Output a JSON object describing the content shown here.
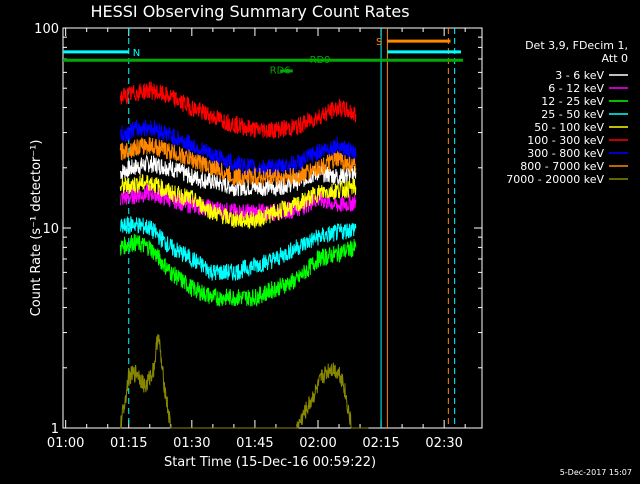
{
  "chart_data": {
    "type": "line",
    "title": "HESSI Observing Summary Count Rates",
    "xlabel": "Start Time (15-Dec-16 00:59:22)",
    "ylabel": "Count Rate (s⁻¹ detector⁻¹)",
    "yscale": "log",
    "ylim": [
      1,
      100
    ],
    "xlim": [
      "00:59:22",
      "02:39:00"
    ],
    "x_ticks": [
      "01:00",
      "01:15",
      "01:30",
      "01:45",
      "02:00",
      "02:15",
      "02:30"
    ],
    "y_ticks": [
      "1",
      "10",
      "100"
    ],
    "grid": false,
    "legend_position": "top-right",
    "legend_title_lines": [
      "Det 3,9, FDecim 1,",
      "Att 0"
    ],
    "background": "#000000",
    "axis_color": "#ffffff",
    "series": [
      {
        "name": "3 - 6 keV",
        "color": "#ffffff",
        "x": [
          "01:13",
          "01:16",
          "01:20",
          "01:25",
          "01:30",
          "01:35",
          "01:40",
          "01:45",
          "01:50",
          "01:55",
          "02:00",
          "02:05",
          "02:09"
        ],
        "values": [
          19,
          20,
          21,
          20,
          18,
          17,
          16,
          16,
          16,
          17,
          19,
          18,
          19
        ]
      },
      {
        "name": "6 - 12 keV",
        "color": "#ff00ff",
        "x": [
          "01:13",
          "01:16",
          "01:20",
          "01:25",
          "01:30",
          "01:35",
          "01:40",
          "01:45",
          "01:50",
          "01:55",
          "02:00",
          "02:05",
          "02:09"
        ],
        "values": [
          14,
          14.5,
          15,
          14,
          13,
          12.5,
          12,
          12,
          12,
          12.5,
          14,
          13,
          13.5
        ]
      },
      {
        "name": "12 - 25 keV",
        "color": "#00ff00",
        "x": [
          "01:13",
          "01:16",
          "01:20",
          "01:25",
          "01:30",
          "01:35",
          "01:40",
          "01:45",
          "01:50",
          "01:55",
          "02:00",
          "02:05",
          "02:09"
        ],
        "values": [
          8,
          8.5,
          8,
          6,
          5,
          4.5,
          4.5,
          4.5,
          5,
          5.5,
          7,
          7.5,
          8
        ]
      },
      {
        "name": "25 - 50 keV",
        "color": "#00ffff",
        "x": [
          "01:13",
          "01:16",
          "01:20",
          "01:25",
          "01:30",
          "01:35",
          "01:40",
          "01:45",
          "01:50",
          "01:55",
          "02:00",
          "02:05",
          "02:09"
        ],
        "values": [
          10,
          10.5,
          10,
          8,
          7,
          6,
          6,
          6.5,
          7,
          8,
          9,
          9.5,
          10
        ]
      },
      {
        "name": "50 - 100 keV",
        "color": "#ffff00",
        "x": [
          "01:13",
          "01:16",
          "01:20",
          "01:25",
          "01:30",
          "01:35",
          "01:40",
          "01:45",
          "01:50",
          "01:55",
          "02:00",
          "02:05",
          "02:09"
        ],
        "values": [
          16,
          16.5,
          17,
          15,
          14,
          12,
          11,
          11,
          12,
          13,
          15,
          15.5,
          16
        ]
      },
      {
        "name": "100 - 300 keV",
        "color": "#ff0000",
        "x": [
          "01:13",
          "01:16",
          "01:20",
          "01:25",
          "01:30",
          "01:35",
          "01:40",
          "01:45",
          "01:50",
          "01:55",
          "02:00",
          "02:05",
          "02:09"
        ],
        "values": [
          45,
          47,
          49,
          45,
          40,
          36,
          33,
          31,
          31,
          32,
          36,
          40,
          37
        ]
      },
      {
        "name": "300 - 800 keV",
        "color": "#0000ff",
        "x": [
          "01:13",
          "01:16",
          "01:20",
          "01:25",
          "01:30",
          "01:35",
          "01:40",
          "01:45",
          "01:50",
          "01:55",
          "02:00",
          "02:05",
          "02:09"
        ],
        "values": [
          29,
          31,
          32,
          29,
          26,
          23,
          21,
          20,
          20,
          21,
          24,
          26,
          23
        ]
      },
      {
        "name": "800 - 7000 keV",
        "color": "#ff8800",
        "x": [
          "01:13",
          "01:16",
          "01:20",
          "01:25",
          "01:30",
          "01:35",
          "01:40",
          "01:45",
          "01:50",
          "01:55",
          "02:00",
          "02:05",
          "02:09"
        ],
        "values": [
          24,
          25,
          26,
          24,
          22,
          20,
          18,
          18,
          18,
          18,
          20,
          22,
          20
        ]
      },
      {
        "name": "7000 - 20000 keV",
        "color": "#888800",
        "x": [
          "01:13",
          "01:15",
          "01:17",
          "01:19",
          "01:21",
          "01:22",
          "01:23",
          "01:25",
          "01:27",
          "01:29",
          "01:35",
          "01:45",
          "01:55",
          "02:00",
          "02:01",
          "02:03",
          "02:05",
          "02:06",
          "02:08",
          "02:12"
        ],
        "values": [
          1,
          1.8,
          1.9,
          1.6,
          2.0,
          3.0,
          1.9,
          1.0,
          1.0,
          1.0,
          1.0,
          1.0,
          1.0,
          1.6,
          1.8,
          2.0,
          1.9,
          1.7,
          1.0,
          1.0
        ]
      }
    ],
    "annotations": [
      {
        "label": "N",
        "color": "#00ffff",
        "x_start": "00:59:22",
        "x_end": "01:15:00",
        "y": 76
      },
      {
        "label": "S",
        "color": "#ff8800",
        "x_start": "02:16:30",
        "x_end": "02:31:30",
        "y": 86
      },
      {
        "label": "RD9",
        "color": "#00aa00",
        "x": "01:58:00",
        "y": 70
      },
      {
        "label": "RD6",
        "color": "#00aa00",
        "x": "01:48:30",
        "y": 62
      }
    ],
    "horizontal_bars": [
      {
        "color": "#00aa00",
        "x_start": "00:59:22",
        "x_end": "02:34:30",
        "y": 69
      },
      {
        "color": "#00ffff",
        "x_start": "02:16:30",
        "x_end": "02:34:00",
        "y": 76
      },
      {
        "color": "#00aa00",
        "x_start": "01:51:00",
        "x_end": "01:54:00",
        "y": 61
      }
    ],
    "vertical_markers": [
      {
        "color": "#00ffff",
        "x": "01:15:00",
        "style": "dashed"
      },
      {
        "color": "#00ffff",
        "x": "02:15:00",
        "style": "solid"
      },
      {
        "color": "#ff8800",
        "x": "02:16:30",
        "style": "solid"
      },
      {
        "color": "#ff8800",
        "x": "02:31:00",
        "style": "dashed"
      },
      {
        "color": "#00ffff",
        "x": "02:32:30",
        "style": "dashed"
      }
    ],
    "plot_date_stamp": "5-Dec-2017 15:07"
  }
}
